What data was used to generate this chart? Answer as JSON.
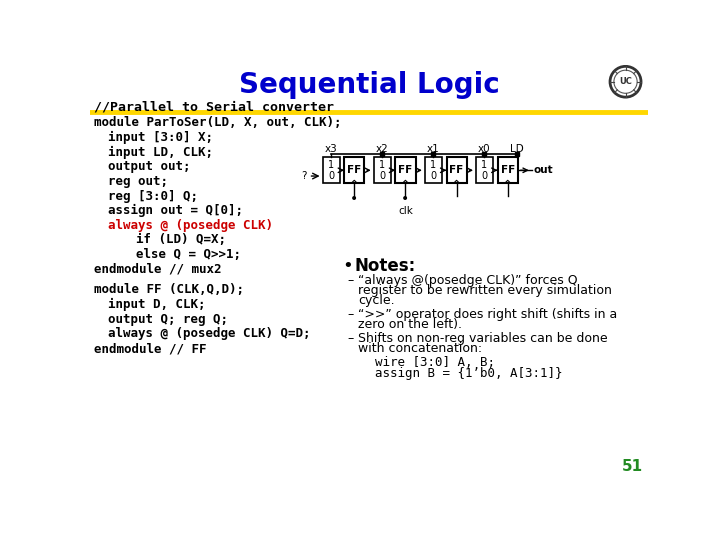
{
  "title": "Sequential Logic",
  "title_color": "#0000cc",
  "subtitle": "//Parallel to Serial converter",
  "subtitle_color": "#000000",
  "subtitle_underline_color": "#FFD700",
  "bg_color": "#ffffff",
  "page_number": "51",
  "page_number_color": "#228B22",
  "code_lines": [
    {
      "text": "module ParToSer(LD, X, out, CLK);",
      "color": "#000000",
      "indent": 0
    },
    {
      "text": "input [3:0] X;",
      "color": "#000000",
      "indent": 1
    },
    {
      "text": "input LD, CLK;",
      "color": "#000000",
      "indent": 1
    },
    {
      "text": "output out;",
      "color": "#000000",
      "indent": 1
    },
    {
      "text": "reg out;",
      "color": "#000000",
      "indent": 1
    },
    {
      "text": "reg [3:0] Q;",
      "color": "#000000",
      "indent": 1
    },
    {
      "text": "assign out = Q[0];",
      "color": "#000000",
      "indent": 1
    },
    {
      "text": "always @ (posedge CLK)",
      "color": "#cc0000",
      "indent": 1
    },
    {
      "text": "if (LD) Q=X;",
      "color": "#000000",
      "indent": 3
    },
    {
      "text": "else Q = Q>>1;",
      "color": "#000000",
      "indent": 3
    },
    {
      "text": "endmodule // mux2",
      "color": "#000000",
      "indent": 0
    }
  ],
  "code_lines2": [
    {
      "text": "module FF (CLK,Q,D);",
      "color": "#000000",
      "indent": 0
    },
    {
      "text": "input D, CLK;",
      "color": "#000000",
      "indent": 1
    },
    {
      "text": "output Q; reg Q;",
      "color": "#000000",
      "indent": 1
    },
    {
      "text": "always @ (posedge CLK) Q=D;",
      "color": "#000000",
      "indent": 1
    },
    {
      "text": "endmodule // FF",
      "color": "#000000",
      "indent": 0
    }
  ],
  "notes_bullet": "Notes:",
  "notes": [
    [
      "“always @(posedge CLK)” forces Q",
      "register to be rewritten every simulation",
      "cycle."
    ],
    [
      "“>>” operator does right shift (shifts in a",
      "zero on the left)."
    ],
    [
      "Shifts on non-reg variables can be done",
      "with concatenation:"
    ]
  ],
  "code_inline": [
    "wire [3:0] A, B;",
    "assign B = {1’b0, A[3:1]}"
  ],
  "diagram_labels_x": [
    "x3",
    "x2",
    "x1",
    "x0"
  ],
  "diagram_label_ld": "LD"
}
